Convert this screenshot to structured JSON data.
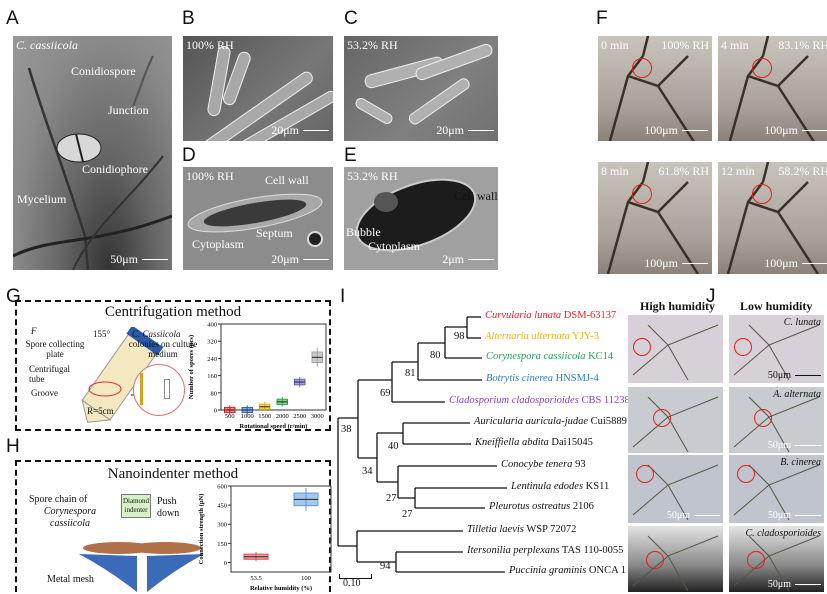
{
  "panels": {
    "A": {
      "label": "A",
      "species": "C. cassiicola",
      "annotations": [
        "Conidiospore",
        "Junction",
        "Conidiophore",
        "Mycelium"
      ],
      "scale": "50μm"
    },
    "B": {
      "label": "B",
      "rh": "100% RH",
      "scale": "20μm"
    },
    "C": {
      "label": "C",
      "rh": "53.2% RH",
      "scale": "20μm"
    },
    "D": {
      "label": "D",
      "rh": "100% RH",
      "annotations": [
        "Cell wall",
        "Septum",
        "Cytoplasm"
      ],
      "scale": "20μm"
    },
    "E": {
      "label": "E",
      "rh": "53.2% RH",
      "annotations": [
        "Cell wall",
        "Bubble",
        "Cytoplasm"
      ],
      "scale": "2μm"
    },
    "F": {
      "label": "F",
      "frames": [
        {
          "time": "0 min",
          "rh": "100% RH",
          "scale": "100μm"
        },
        {
          "time": "4 min",
          "rh": "83.1% RH",
          "scale": "100μm"
        },
        {
          "time": "8 min",
          "rh": "61.8% RH",
          "scale": "100μm"
        },
        {
          "time": "12 min",
          "rh": "58.2% RH",
          "scale": "100μm"
        }
      ]
    },
    "G": {
      "label": "G",
      "title": "Centrifugation method",
      "annotations": [
        "F",
        "Spore collecting plate",
        "Centrifugal tube",
        "Groove",
        "R=5cm",
        "155°",
        "C. Cassiicola",
        "colonies on culture medium"
      ]
    },
    "H": {
      "label": "H",
      "title": "Nanoindenter method",
      "annotations": [
        "Spore chain of",
        "Corynespora cassiicola",
        "Diamond indenter",
        "Push down",
        "Metal mesh"
      ]
    },
    "I": {
      "label": "I",
      "scale": "0.10"
    },
    "J": {
      "label": "J",
      "col_headers": [
        "High humidity",
        "Low humidity"
      ],
      "rows": [
        {
          "species": "C. lunata",
          "scale": "50μm"
        },
        {
          "species": "A. alternata",
          "scale": "50μm"
        },
        {
          "species": "B. cinerea",
          "scale": "50μm"
        },
        {
          "species": "C. cladosporioides",
          "scale": "50μm"
        }
      ]
    }
  },
  "tree": {
    "leaves": [
      {
        "genus": "Curvularia lunata",
        "strain": "DSM-63137",
        "color": "#e8202a"
      },
      {
        "genus": "Alternaria alternata",
        "strain": "YJY-3",
        "color": "#f0b400"
      },
      {
        "genus": "Corynespora cassiicola",
        "strain": "KC14",
        "color": "#1aa55a"
      },
      {
        "genus": "Botrytis cinerea",
        "strain": "HNSMJ-4",
        "color": "#2a7fd0"
      },
      {
        "genus": "Cladosporium cladosporioides",
        "strain": "CBS 112388",
        "color": "#8a3cc0"
      },
      {
        "genus": "Auricularia auricula-judae",
        "strain": "Cui5889",
        "color": "#111111"
      },
      {
        "genus": "Kneiffiella abdita",
        "strain": "Dai15045",
        "color": "#111111"
      },
      {
        "genus": "Conocybe tenera",
        "strain": "93",
        "color": "#111111"
      },
      {
        "genus": "Lentinula edodes",
        "strain": "KS11",
        "color": "#111111"
      },
      {
        "genus": "Pleurotus ostreatus",
        "strain": "2106",
        "color": "#111111"
      },
      {
        "genus": "Tilletia laevis",
        "strain": "WSP 72072",
        "color": "#111111"
      },
      {
        "genus": "Itersonilia perplexans",
        "strain": "TAS 110-0055",
        "color": "#111111"
      },
      {
        "genus": "Puccinia graminis",
        "strain": "ONCA 1",
        "color": "#111111"
      }
    ],
    "bootstrap": [
      "98",
      "80",
      "81",
      "69",
      "38",
      "40",
      "34",
      "27",
      "27",
      "94"
    ]
  },
  "chart_data": [
    {
      "type": "box",
      "xlabel": "Rotational speed (r/min)",
      "ylabel": "Number of spores (pcs)",
      "categories": [
        "500",
        "1000",
        "1500",
        "2000",
        "2500",
        "3000"
      ],
      "values": [
        0,
        0,
        15,
        38,
        130,
        245
      ],
      "colors": [
        "#e02020",
        "#3060c0",
        "#e0b000",
        "#20b040",
        "#6060c0",
        "#a0a0a0"
      ],
      "yticks": [
        "0",
        "80",
        "160",
        "240",
        "320",
        "400"
      ],
      "ylim": [
        0,
        400
      ]
    },
    {
      "type": "box",
      "xlabel": "Relative humidity (%)",
      "ylabel": "Connection strength (μN)",
      "categories": [
        "53.5",
        "100"
      ],
      "values": [
        45,
        495
      ],
      "colors": [
        "#e05050",
        "#5a9ae0"
      ],
      "yticks": [
        "0",
        "150",
        "300",
        "450",
        "600"
      ],
      "ylim": [
        -75,
        600
      ]
    }
  ]
}
